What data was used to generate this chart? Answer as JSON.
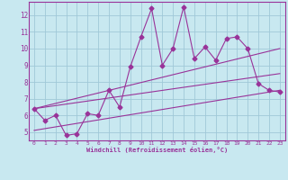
{
  "xlabel": "Windchill (Refroidissement éolien,°C)",
  "background_color": "#c8e8f0",
  "plot_bg_color": "#c8e8f0",
  "grid_color": "#a0c8d8",
  "line_color": "#993399",
  "border_color": "#993399",
  "xlim": [
    -0.5,
    23.5
  ],
  "ylim": [
    4.5,
    12.8
  ],
  "xticks": [
    0,
    1,
    2,
    3,
    4,
    5,
    6,
    7,
    8,
    9,
    10,
    11,
    12,
    13,
    14,
    15,
    16,
    17,
    18,
    19,
    20,
    21,
    22,
    23
  ],
  "yticks": [
    5,
    6,
    7,
    8,
    9,
    10,
    11,
    12
  ],
  "series1_x": [
    0,
    1,
    2,
    3,
    4,
    5,
    6,
    7,
    8,
    9,
    10,
    11,
    12,
    13,
    14,
    15,
    16,
    17,
    18,
    19,
    20,
    21,
    22,
    23
  ],
  "series1_y": [
    6.4,
    5.7,
    6.0,
    4.8,
    4.9,
    6.1,
    6.0,
    7.5,
    6.5,
    8.9,
    10.7,
    12.4,
    9.0,
    10.0,
    12.5,
    9.4,
    10.1,
    9.3,
    10.6,
    10.7,
    10.0,
    7.9,
    7.5,
    7.4
  ],
  "series2_x": [
    0,
    23
  ],
  "series2_y": [
    6.4,
    10.0
  ],
  "series3_x": [
    0,
    23
  ],
  "series3_y": [
    6.4,
    8.5
  ],
  "series4_x": [
    0,
    23
  ],
  "series4_y": [
    5.1,
    7.5
  ]
}
